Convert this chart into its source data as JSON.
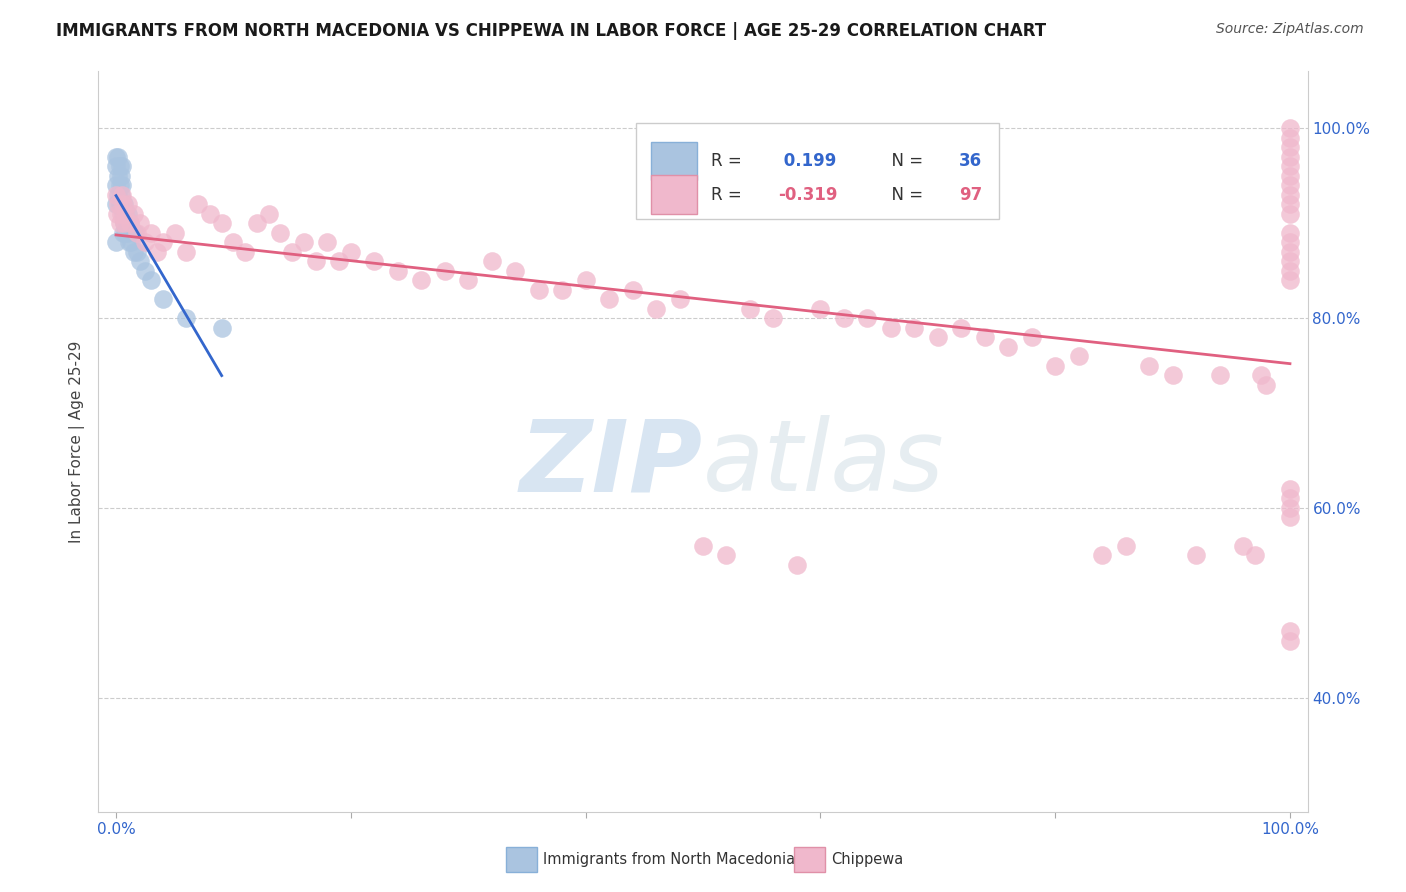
{
  "title": "IMMIGRANTS FROM NORTH MACEDONIA VS CHIPPEWA IN LABOR FORCE | AGE 25-29 CORRELATION CHART",
  "source": "Source: ZipAtlas.com",
  "ylabel": "In Labor Force | Age 25-29",
  "blue_R": 0.199,
  "blue_N": 36,
  "pink_R": -0.319,
  "pink_N": 97,
  "blue_color": "#aac4e0",
  "pink_color": "#f0b8cc",
  "blue_line_color": "#3366cc",
  "pink_line_color": "#e06080",
  "legend_label_blue": "Immigrants from North Macedonia",
  "legend_label_pink": "Chippewa",
  "watermark_zip": "ZIP",
  "watermark_atlas": "atlas",
  "xlim": [
    0.0,
    1.0
  ],
  "ylim": [
    0.28,
    1.06
  ],
  "yticks": [
    0.4,
    0.6,
    0.8,
    1.0
  ],
  "ytick_labels": [
    "40.0%",
    "60.0%",
    "80.0%",
    "100.0%"
  ],
  "xtick_labels": [
    "0.0%",
    "100.0%"
  ],
  "title_fontsize": 12,
  "source_fontsize": 10,
  "tick_fontsize": 11,
  "ylabel_fontsize": 11,
  "legend_fontsize": 12
}
